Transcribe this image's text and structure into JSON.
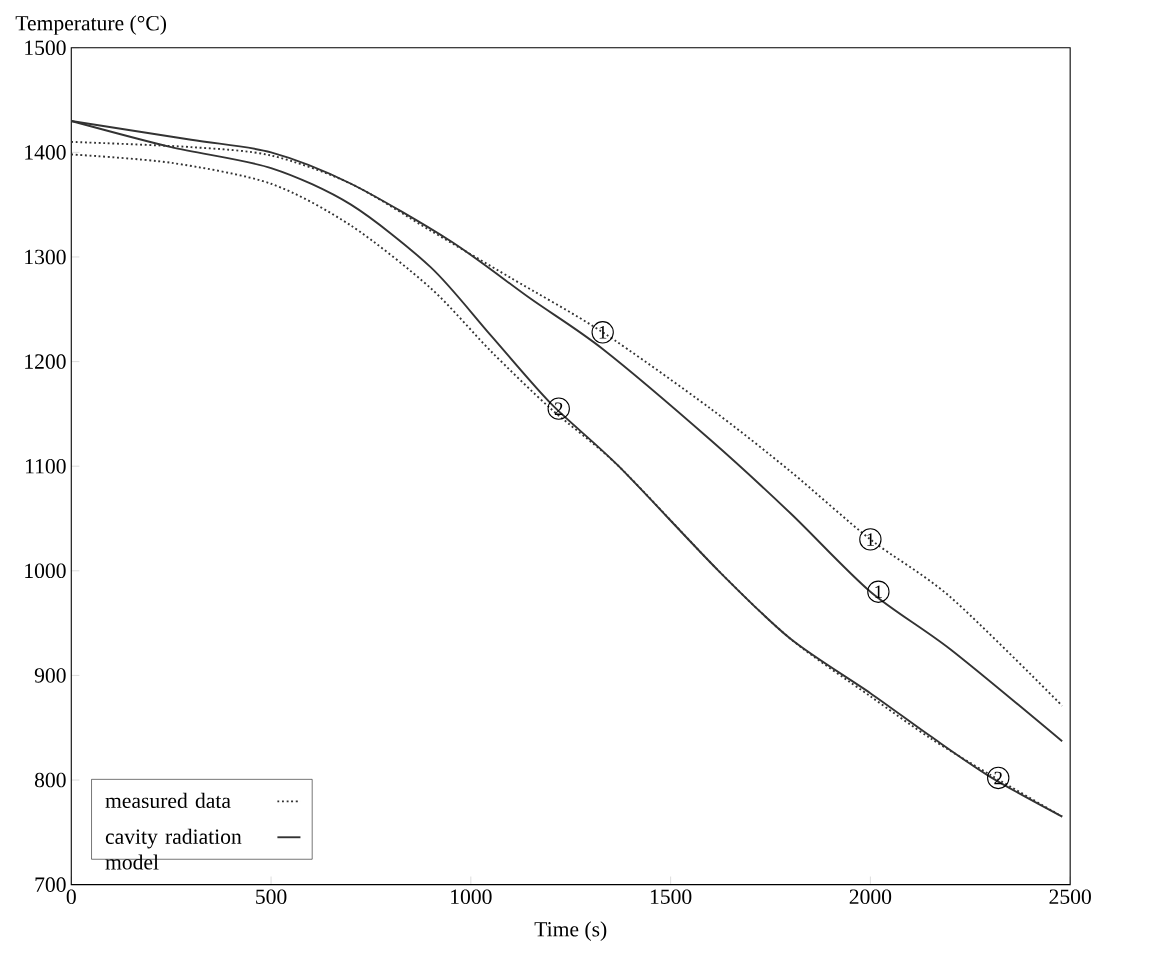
{
  "chart_data": {
    "type": "line",
    "xlabel": "Time (s)",
    "ylabel": "Temperature (°C)",
    "xlim": [
      0,
      2500
    ],
    "ylim": [
      700,
      1500
    ],
    "xticks": [
      0,
      500,
      1000,
      1500,
      2000,
      2500
    ],
    "yticks": [
      700,
      800,
      900,
      1000,
      1100,
      1200,
      1300,
      1400,
      1500
    ],
    "x": [
      0,
      250,
      500,
      700,
      900,
      1050,
      1200,
      1370,
      1620,
      1800,
      2000,
      2150,
      2300,
      2480
    ],
    "series": [
      {
        "name": "measured data",
        "color": "#333333",
        "line_style": "dotted",
        "x": [
          0,
          300,
          500,
          700,
          900,
          1100,
          1330,
          1600,
          1800,
          2000,
          2200,
          2480
        ],
        "values": [
          1410,
          1405,
          1397,
          1370,
          1325,
          1280,
          1228,
          1155,
          1095,
          1030,
          975,
          871
        ]
      },
      {
        "name": "cavity radiation model",
        "color": "#333333",
        "line_style": "solid",
        "x": [
          0,
          300,
          500,
          700,
          950,
          1150,
          1330,
          1600,
          1800,
          2000,
          2200,
          2480
        ],
        "values": [
          1430,
          1412,
          1400,
          1370,
          1315,
          1260,
          1212,
          1125,
          1055,
          980,
          925,
          837
        ]
      },
      {
        "color": "#333333",
        "line_style": "dotted",
        "values": [
          1398,
          1390,
          1370,
          1330,
          1270,
          1210,
          1155,
          1100,
          1000,
          935,
          880,
          840,
          805,
          765
        ]
      },
      {
        "color": "#333333",
        "line_style": "solid",
        "values": [
          1430,
          1405,
          1385,
          1350,
          1290,
          1225,
          1160,
          1100,
          1000,
          935,
          883,
          842,
          803,
          765
        ]
      }
    ],
    "legend": "bottom left",
    "annotations": [
      {
        "text": "1",
        "x": 1330,
        "y": 1228
      },
      {
        "text": "1",
        "x": 2000,
        "y": 1030
      },
      {
        "text": "1",
        "x": 2020,
        "y": 980
      },
      {
        "text": "2",
        "x": 1220,
        "y": 1155
      },
      {
        "text": "2",
        "x": 2320,
        "y": 802
      }
    ]
  }
}
